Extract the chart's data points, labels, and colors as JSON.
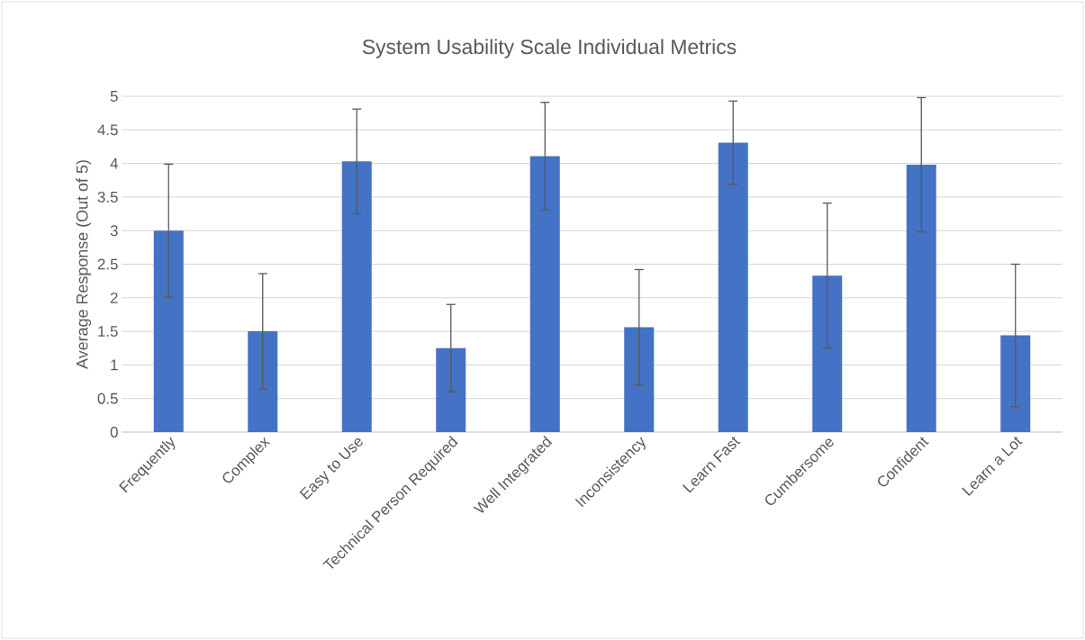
{
  "chart_data": {
    "type": "bar",
    "title": "System Usability Scale Individual Metrics",
    "ylabel": "Average Response (Out of 5)",
    "categories": [
      "Frequently",
      "Complex",
      "Easy to Use",
      "Technical Person Required",
      "Well Integrated",
      "Inconsistency",
      "Learn Fast",
      "Cumbersome",
      "Confident",
      "Learn a Lot"
    ],
    "values": [
      3.0,
      1.5,
      4.03,
      1.25,
      4.11,
      1.56,
      4.31,
      2.33,
      3.98,
      1.44
    ],
    "errors": [
      0.99,
      0.86,
      0.78,
      0.65,
      0.8,
      0.86,
      0.62,
      1.08,
      1.0,
      1.06
    ],
    "color": "#4472c4",
    "ylim": [
      0,
      5
    ],
    "yticks": [
      0,
      0.5,
      1,
      1.5,
      2,
      2.5,
      3,
      3.5,
      4,
      4.5,
      5
    ],
    "grid": "y"
  }
}
